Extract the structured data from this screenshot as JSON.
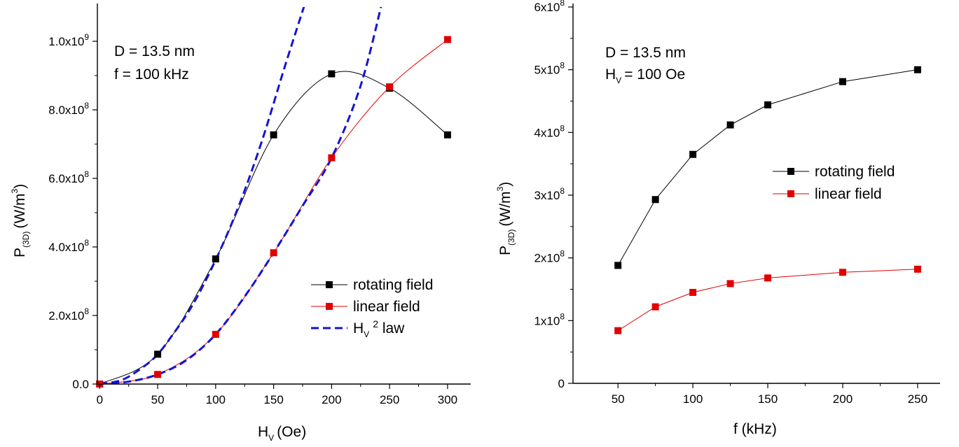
{
  "chart_data": [
    {
      "type": "line",
      "xlabel": "H",
      "xlabel_sub": "V",
      "xlabel_unit": "(Oe)",
      "ylabel": "P",
      "ylabel_sub": "(3D)",
      "ylabel_unit": "(W/m",
      "ylabel_unit_sup": "3",
      "ylabel_unit_close": ")",
      "xlim": [
        -2,
        320
      ],
      "ylim": [
        0,
        1100000000.0
      ],
      "x_ticks": [
        0,
        50,
        100,
        150,
        200,
        250,
        300
      ],
      "x_tick_labels": [
        "0",
        "50",
        "100",
        "150",
        "200",
        "250",
        "300"
      ],
      "y_ticks": [
        0,
        200000000.0,
        400000000.0,
        600000000.0,
        800000000.0,
        1000000000.0
      ],
      "y_tick_labels": [
        {
          "base": "0.0",
          "exp": ""
        },
        {
          "base": "2.0x10",
          "exp": "8"
        },
        {
          "base": "4.0x10",
          "exp": "8"
        },
        {
          "base": "6.0x10",
          "exp": "8"
        },
        {
          "base": "8.0x10",
          "exp": "8"
        },
        {
          "base": "1.0x10",
          "exp": "9"
        }
      ],
      "annotations": [
        "D = 13.5 nm",
        "f = 100 kHz"
      ],
      "grid": false,
      "legend_position": "lower-right",
      "series": [
        {
          "name": "rotating field",
          "color": "#000000",
          "marker": "square",
          "style": "thin-line",
          "x": [
            0,
            50,
            100,
            150,
            200,
            250,
            300
          ],
          "y": [
            0,
            87000000.0,
            365000000.0,
            727000000.0,
            905000000.0,
            863000000.0,
            727000000.0
          ]
        },
        {
          "name": "linear field",
          "color": "#e00000",
          "marker": "square",
          "style": "thin-line",
          "x": [
            0,
            50,
            100,
            150,
            200,
            250,
            300
          ],
          "y": [
            0,
            28000000.0,
            145000000.0,
            383000000.0,
            660000000.0,
            867000000.0,
            1005000000.0
          ]
        },
        {
          "name": "H",
          "name_sub": "V",
          "name_sup": "2",
          "name_tail": " law",
          "color": "#1414d2",
          "marker": "none",
          "style": "dashed"
        }
      ],
      "h2_law_curves": [
        {
          "x": [
            0,
            20,
            40,
            50,
            60,
            80,
            100,
            120,
            140,
            160,
            178
          ],
          "y": [
            0,
            13000000.0,
            56000000.0,
            87000000.0,
            130000000.0,
            230000000.0,
            362000000.0,
            520000000.0,
            710000000.0,
            930000000.0,
            1120000000.0
          ]
        },
        {
          "x": [
            0,
            25,
            50,
            75,
            100,
            125,
            150,
            175,
            200,
            225,
            244
          ],
          "y": [
            0,
            7000000.0,
            28000000.0,
            70000000.0,
            145000000.0,
            255000000.0,
            383000000.0,
            520000000.0,
            660000000.0,
            870000000.0,
            1120000000.0
          ]
        }
      ]
    },
    {
      "type": "line",
      "xlabel": "f (kHz)",
      "ylabel": "P",
      "ylabel_sub": "(3D)",
      "ylabel_unit": "(W/m",
      "ylabel_unit_sup": "3",
      "ylabel_unit_close": ")",
      "xlim": [
        20,
        265
      ],
      "ylim": [
        0,
        600000000.0
      ],
      "x_ticks": [
        50,
        100,
        150,
        200,
        250
      ],
      "x_tick_labels": [
        "50",
        "100",
        "150",
        "200",
        "250"
      ],
      "y_ticks": [
        0,
        100000000.0,
        200000000.0,
        300000000.0,
        400000000.0,
        500000000.0,
        600000000.0
      ],
      "y_tick_labels": [
        {
          "base": "0",
          "exp": ""
        },
        {
          "base": "1x10",
          "exp": "8"
        },
        {
          "base": "2x10",
          "exp": "8"
        },
        {
          "base": "3x10",
          "exp": "8"
        },
        {
          "base": "4x10",
          "exp": "8"
        },
        {
          "base": "5x10",
          "exp": "8"
        },
        {
          "base": "6x10",
          "exp": "8"
        }
      ],
      "annotations": [
        "D = 13.5 nm",
        "H",
        "V",
        "= 100 Oe"
      ],
      "grid": false,
      "legend_position": "center-right",
      "series": [
        {
          "name": "rotating field",
          "color": "#000000",
          "marker": "square",
          "x": [
            50,
            75,
            100,
            125,
            150,
            200,
            250
          ],
          "y": [
            188000000.0,
            293000000.0,
            365000000.0,
            412000000.0,
            444000000.0,
            481000000.0,
            500000000.0
          ]
        },
        {
          "name": "linear field",
          "color": "#e00000",
          "marker": "square",
          "x": [
            50,
            75,
            100,
            125,
            150,
            200,
            250
          ],
          "y": [
            84000000.0,
            122000000.0,
            145000000.0,
            159000000.0,
            168000000.0,
            177000000.0,
            182000000.0
          ]
        }
      ]
    }
  ]
}
